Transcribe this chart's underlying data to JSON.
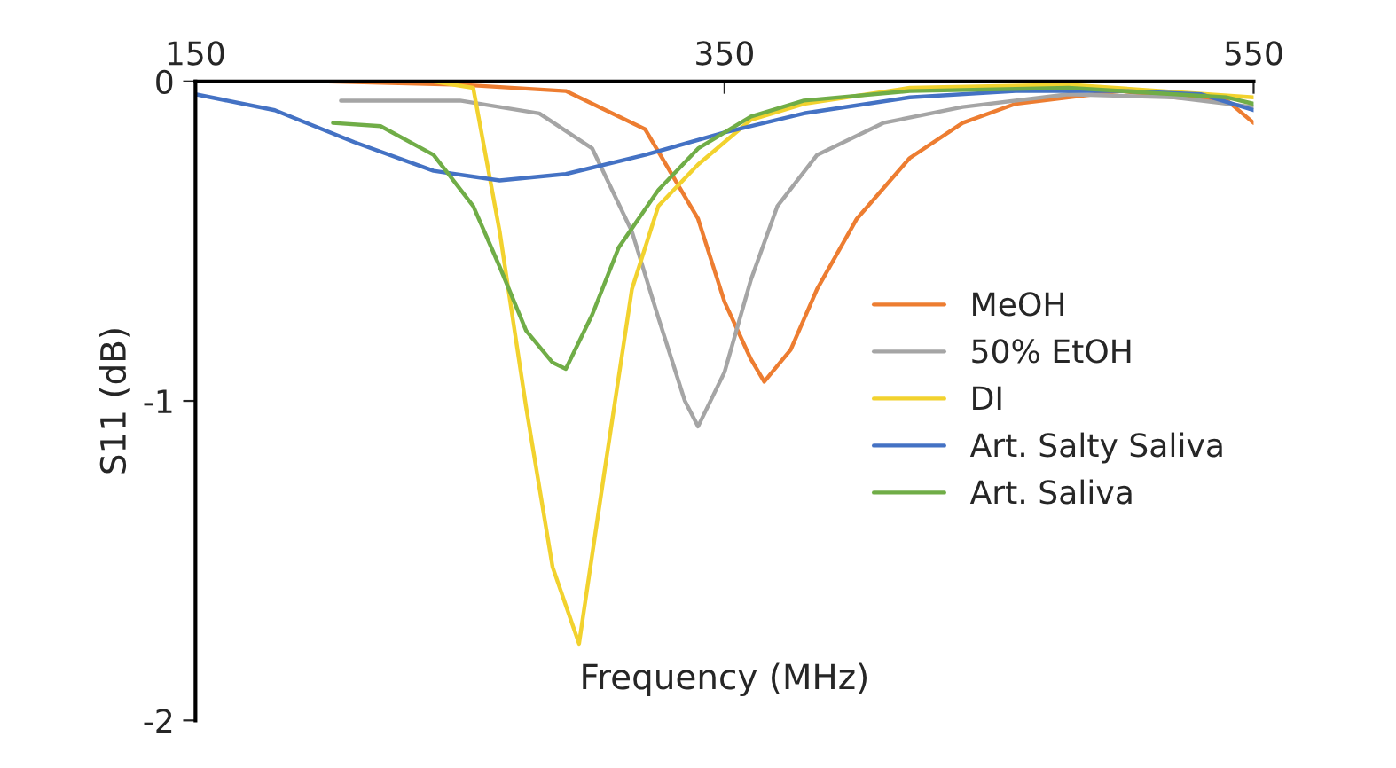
{
  "chart_data": {
    "type": "line",
    "xlabel": "Frequency (MHz)",
    "ylabel": "S11 (dB)",
    "xlim": [
      150,
      550
    ],
    "xticks": [
      150,
      350,
      550
    ],
    "ylim": [
      -2,
      0
    ],
    "yticks": [
      -2,
      -1,
      0
    ],
    "grid": false,
    "legend": "right",
    "marker": "none",
    "line_style": "solid",
    "series": [
      {
        "name": "MeOH",
        "color": "#ed7d31",
        "x": [
          200,
          250,
          290,
          320,
          340,
          350,
          360,
          365,
          375,
          385,
          400,
          420,
          440,
          460,
          500,
          520,
          540,
          550
        ],
        "values": [
          0,
          -0.01,
          -0.03,
          -0.15,
          -0.43,
          -0.69,
          -0.87,
          -0.94,
          -0.84,
          -0.65,
          -0.43,
          -0.24,
          -0.13,
          -0.07,
          -0.03,
          -0.05,
          -0.06,
          -0.13
        ]
      },
      {
        "name": "50% EtOH",
        "color": "#a5a5a5",
        "x": [
          205,
          250,
          280,
          300,
          315,
          325,
          335,
          340,
          350,
          360,
          370,
          385,
          410,
          440,
          480,
          520,
          550
        ],
        "values": [
          -0.06,
          -0.06,
          -0.1,
          -0.21,
          -0.47,
          -0.74,
          -1.0,
          -1.08,
          -0.91,
          -0.62,
          -0.39,
          -0.23,
          -0.13,
          -0.08,
          -0.04,
          -0.05,
          -0.08
        ]
      },
      {
        "name": "DI",
        "color": "#f2d22e",
        "x": [
          240,
          255,
          265,
          275,
          285,
          295,
          305,
          315,
          325,
          340,
          360,
          380,
          420,
          480,
          550
        ],
        "values": [
          0,
          -0.02,
          -0.47,
          -1.02,
          -1.52,
          -1.76,
          -1.2,
          -0.65,
          -0.39,
          -0.26,
          -0.12,
          -0.07,
          -0.02,
          -0.01,
          -0.05
        ]
      },
      {
        "name": "Art. Salty Saliva",
        "color": "#4472c4",
        "x": [
          150,
          180,
          210,
          240,
          265,
          290,
          320,
          350,
          380,
          420,
          460,
          500,
          530,
          550
        ],
        "values": [
          -0.04,
          -0.09,
          -0.19,
          -0.28,
          -0.31,
          -0.29,
          -0.23,
          -0.16,
          -0.1,
          -0.05,
          -0.03,
          -0.03,
          -0.04,
          -0.09
        ]
      },
      {
        "name": "Art. Saliva",
        "color": "#70ad47",
        "x": [
          202,
          220,
          240,
          255,
          265,
          275,
          285,
          290,
          300,
          310,
          325,
          340,
          360,
          380,
          420,
          480,
          540,
          550
        ],
        "values": [
          -0.13,
          -0.14,
          -0.23,
          -0.39,
          -0.58,
          -0.78,
          -0.88,
          -0.9,
          -0.73,
          -0.52,
          -0.34,
          -0.21,
          -0.11,
          -0.06,
          -0.03,
          -0.02,
          -0.05,
          -0.07
        ]
      }
    ]
  }
}
